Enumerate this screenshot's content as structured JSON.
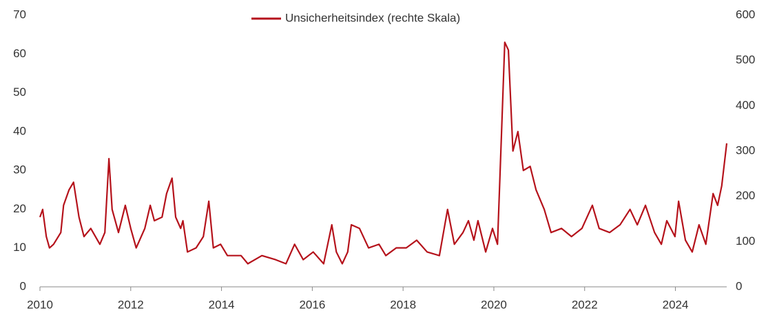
{
  "chart_data": {
    "type": "line",
    "legend": "top",
    "xlim": [
      2010,
      2025.13
    ],
    "xticks": [
      2010,
      2012,
      2014,
      2016,
      2018,
      2020,
      2022,
      2024
    ],
    "ylim": [
      0,
      70
    ],
    "yticks": [
      0,
      10,
      20,
      30,
      40,
      50,
      60,
      70
    ],
    "y2lim": [
      0,
      600
    ],
    "y2ticks": [
      0,
      100,
      200,
      300,
      400,
      500,
      600
    ],
    "x": [
      2010.0,
      2010.06,
      2010.14,
      2010.21,
      2010.3,
      2010.46,
      2010.52,
      2010.64,
      2010.74,
      2010.86,
      2010.97,
      2011.12,
      2011.32,
      2011.43,
      2011.52,
      2011.59,
      2011.73,
      2011.88,
      2012.0,
      2012.12,
      2012.31,
      2012.43,
      2012.52,
      2012.69,
      2012.79,
      2012.91,
      2012.99,
      2013.1,
      2013.15,
      2013.25,
      2013.44,
      2013.6,
      2013.72,
      2013.82,
      2013.98,
      2014.13,
      2014.43,
      2014.58,
      2014.89,
      2015.19,
      2015.42,
      2015.61,
      2015.8,
      2016.02,
      2016.25,
      2016.43,
      2016.53,
      2016.66,
      2016.78,
      2016.86,
      2017.04,
      2017.24,
      2017.47,
      2017.62,
      2017.85,
      2018.07,
      2018.3,
      2018.53,
      2018.8,
      2018.98,
      2019.13,
      2019.32,
      2019.44,
      2019.56,
      2019.65,
      2019.82,
      2019.97,
      2020.08,
      2020.17,
      2020.24,
      2020.32,
      2020.42,
      2020.53,
      2020.65,
      2020.8,
      2020.93,
      2021.11,
      2021.26,
      2021.49,
      2021.71,
      2021.94,
      2022.17,
      2022.32,
      2022.55,
      2022.78,
      2023.0,
      2023.16,
      2023.34,
      2023.54,
      2023.69,
      2023.81,
      2023.99,
      2024.07,
      2024.22,
      2024.37,
      2024.52,
      2024.67,
      2024.83,
      2024.93,
      2025.02,
      2025.13
    ],
    "series": [
      {
        "name": "Unsicherheitsindex (rechte Skala)",
        "color": "#b5121b",
        "axis": "y2",
        "values": [
          154,
          171,
          111,
          86,
          94,
          120,
          180,
          214,
          231,
          154,
          111,
          129,
          94,
          120,
          283,
          171,
          120,
          180,
          129,
          86,
          129,
          180,
          146,
          154,
          206,
          240,
          154,
          129,
          146,
          77,
          86,
          111,
          189,
          86,
          94,
          69,
          69,
          51,
          69,
          60,
          51,
          94,
          60,
          77,
          51,
          137,
          77,
          51,
          77,
          137,
          129,
          86,
          94,
          69,
          86,
          86,
          103,
          77,
          69,
          171,
          94,
          120,
          146,
          103,
          146,
          77,
          129,
          94,
          343,
          540,
          523,
          300,
          343,
          257,
          266,
          214,
          171,
          120,
          129,
          111,
          129,
          180,
          129,
          120,
          137,
          171,
          137,
          180,
          120,
          94,
          146,
          111,
          189,
          103,
          77,
          137,
          94,
          206,
          180,
          223,
          317
        ]
      }
    ]
  }
}
